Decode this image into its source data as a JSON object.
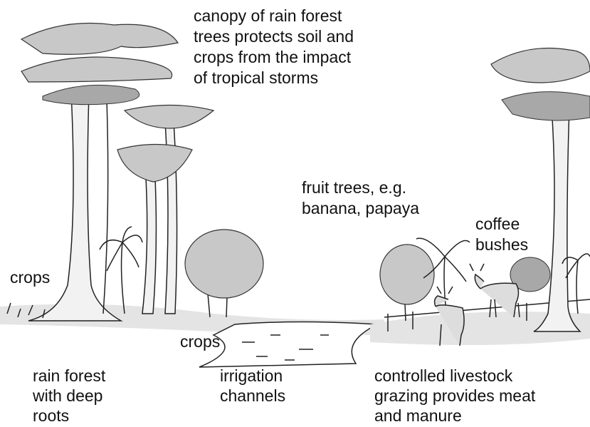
{
  "labels": [
    {
      "lines": [
        "canopy of rain forest",
        "trees protects soil and",
        "crops from the impact",
        "of tropical storms"
      ]
    },
    {
      "lines": [
        "fruit trees, e.g.",
        "banana, papaya"
      ]
    },
    {
      "lines": [
        "coffee",
        "bushes"
      ]
    },
    {
      "lines": [
        "crops"
      ]
    },
    {
      "lines": [
        "crops"
      ]
    },
    {
      "lines": [
        "rain forest",
        "with deep",
        "roots"
      ]
    },
    {
      "lines": [
        "irrigation",
        "channels"
      ]
    },
    {
      "lines": [
        "controlled livestock",
        "grazing provides meat",
        "and manure"
      ]
    }
  ]
}
